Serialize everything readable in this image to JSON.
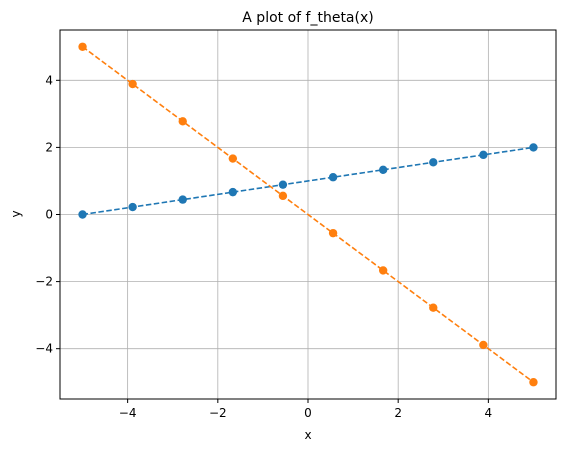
{
  "chart_data": {
    "type": "line",
    "title": "A plot of f_theta(x)",
    "xlabel": "x",
    "ylabel": "y",
    "xlim": [
      -5.5,
      5.5
    ],
    "ylim": [
      -5.5,
      5.5
    ],
    "xticks": [
      -4,
      -2,
      0,
      2,
      4
    ],
    "yticks": [
      -4,
      -2,
      0,
      2,
      4
    ],
    "xtick_labels": [
      "−4",
      "−2",
      "0",
      "2",
      "4"
    ],
    "ytick_labels": [
      "−4",
      "−2",
      "0",
      "2",
      "4"
    ],
    "grid": true,
    "line_style": "dashed",
    "marker": "circle",
    "x": [
      -5.0,
      -3.889,
      -2.778,
      -1.667,
      -0.556,
      0.556,
      1.667,
      2.778,
      3.889,
      5.0
    ],
    "series": [
      {
        "color": "#1f77b4",
        "values": [
          0.0,
          0.222,
          0.444,
          0.667,
          0.889,
          1.111,
          1.333,
          1.556,
          1.778,
          2.0
        ]
      },
      {
        "color": "#ff7f0e",
        "values": [
          5.0,
          3.889,
          2.778,
          1.667,
          0.556,
          -0.556,
          -1.667,
          -2.778,
          -3.889,
          -5.0
        ]
      }
    ]
  }
}
